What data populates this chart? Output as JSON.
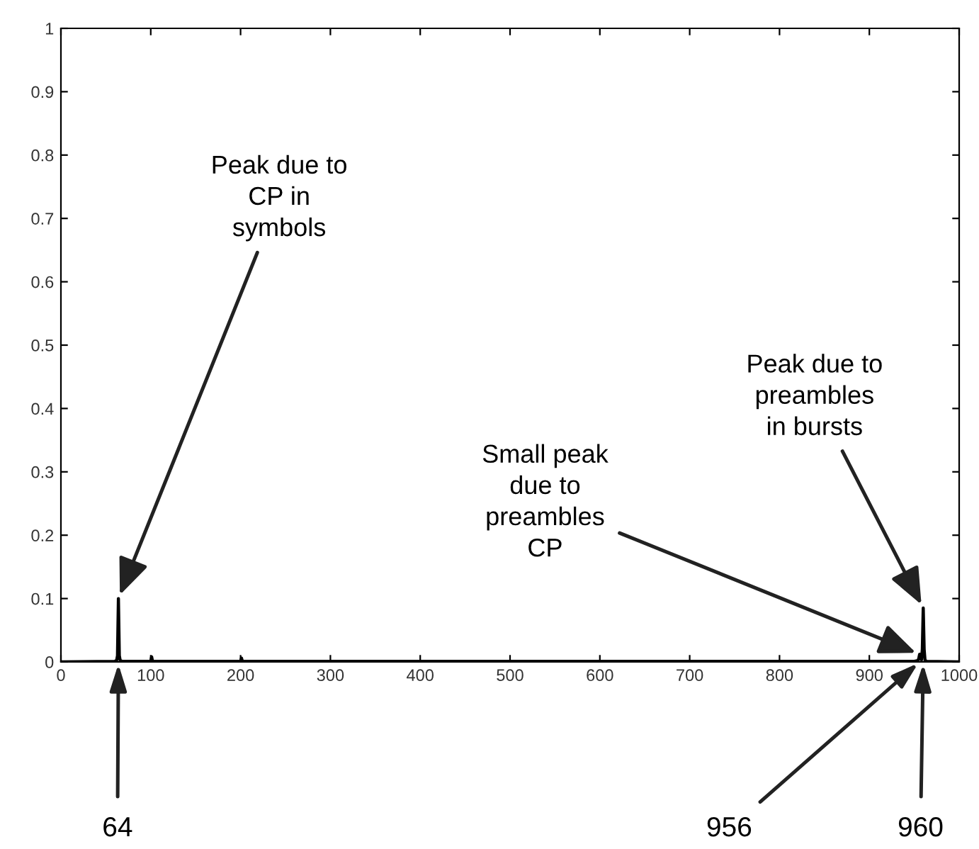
{
  "chart_data": {
    "type": "line",
    "series": [
      {
        "color": "#000000",
        "x": [
          0,
          60,
          62,
          63,
          64,
          65,
          66,
          68,
          100,
          101,
          102,
          200,
          201,
          202,
          500,
          900,
          950,
          954,
          955,
          956,
          957,
          958,
          959,
          960,
          961,
          962,
          964,
          999
        ],
        "values": [
          0,
          0.001,
          0.002,
          0.01,
          0.1,
          0.01,
          0.002,
          0.001,
          0.001,
          0.008,
          0.001,
          0.001,
          0.006,
          0.001,
          0.001,
          0.001,
          0.001,
          0.002,
          0.005,
          0.012,
          0.005,
          0.003,
          0.02,
          0.085,
          0.02,
          0.002,
          0.001,
          0
        ]
      }
    ],
    "xlim": [
      0,
      1000
    ],
    "xticks": [
      0,
      100,
      200,
      300,
      400,
      500,
      600,
      700,
      800,
      900,
      1000
    ],
    "ylim": [
      0,
      1
    ],
    "yticks": [
      0,
      0.1,
      0.2,
      0.3,
      0.4,
      0.5,
      0.6,
      0.7,
      0.8,
      0.9,
      1
    ],
    "grid": false,
    "legend": false,
    "marker": "none",
    "line_style": "solid",
    "annotations": [
      {
        "text": "Peak due to\nCP in\nsymbols",
        "x": 64,
        "y": 0.1
      },
      {
        "text": "Small peak\ndue to\npreambles\nCP",
        "x": 956,
        "y": 0.012
      },
      {
        "text": "Peak due to\npreambles\nin bursts",
        "x": 960,
        "y": 0.085
      },
      {
        "text": "64",
        "x": 64,
        "y": 0
      },
      {
        "text": "956",
        "x": 956,
        "y": 0
      },
      {
        "text": "960",
        "x": 960,
        "y": 0
      }
    ]
  }
}
